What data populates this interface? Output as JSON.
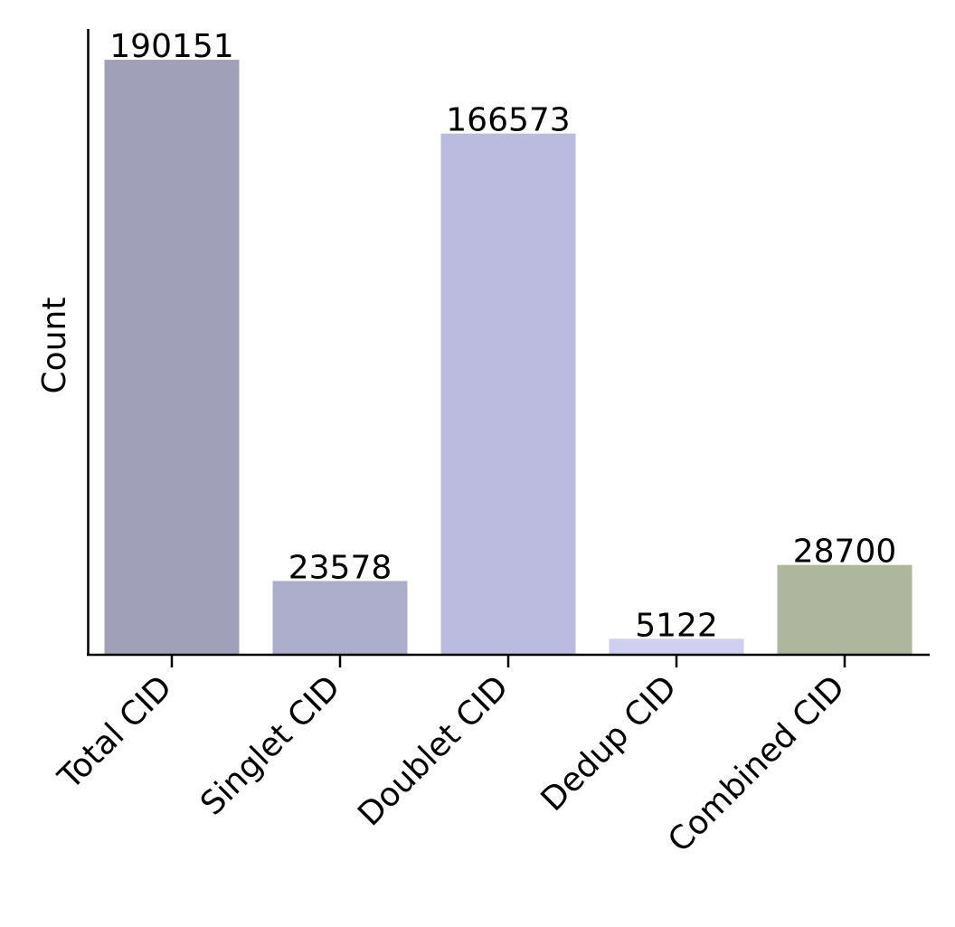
{
  "chart_data": {
    "type": "bar",
    "title": "",
    "xlabel": "",
    "ylabel": "Count",
    "categories": [
      "Total CID",
      "Singlet CID",
      "Doublet CID",
      "Dedup CID",
      "Combined CID"
    ],
    "values": [
      190151,
      23578,
      166573,
      5122,
      28700
    ],
    "value_labels": [
      "190151",
      "23578",
      "166573",
      "5122",
      "28700"
    ],
    "colors": [
      "#a0a0b8",
      "#acaecc",
      "#bbbbdf",
      "#cfcff0",
      "#aeb79e"
    ],
    "ylim": [
      0,
      200000
    ],
    "y_tick_labels_shown": false,
    "grid": false,
    "legend": "none"
  }
}
